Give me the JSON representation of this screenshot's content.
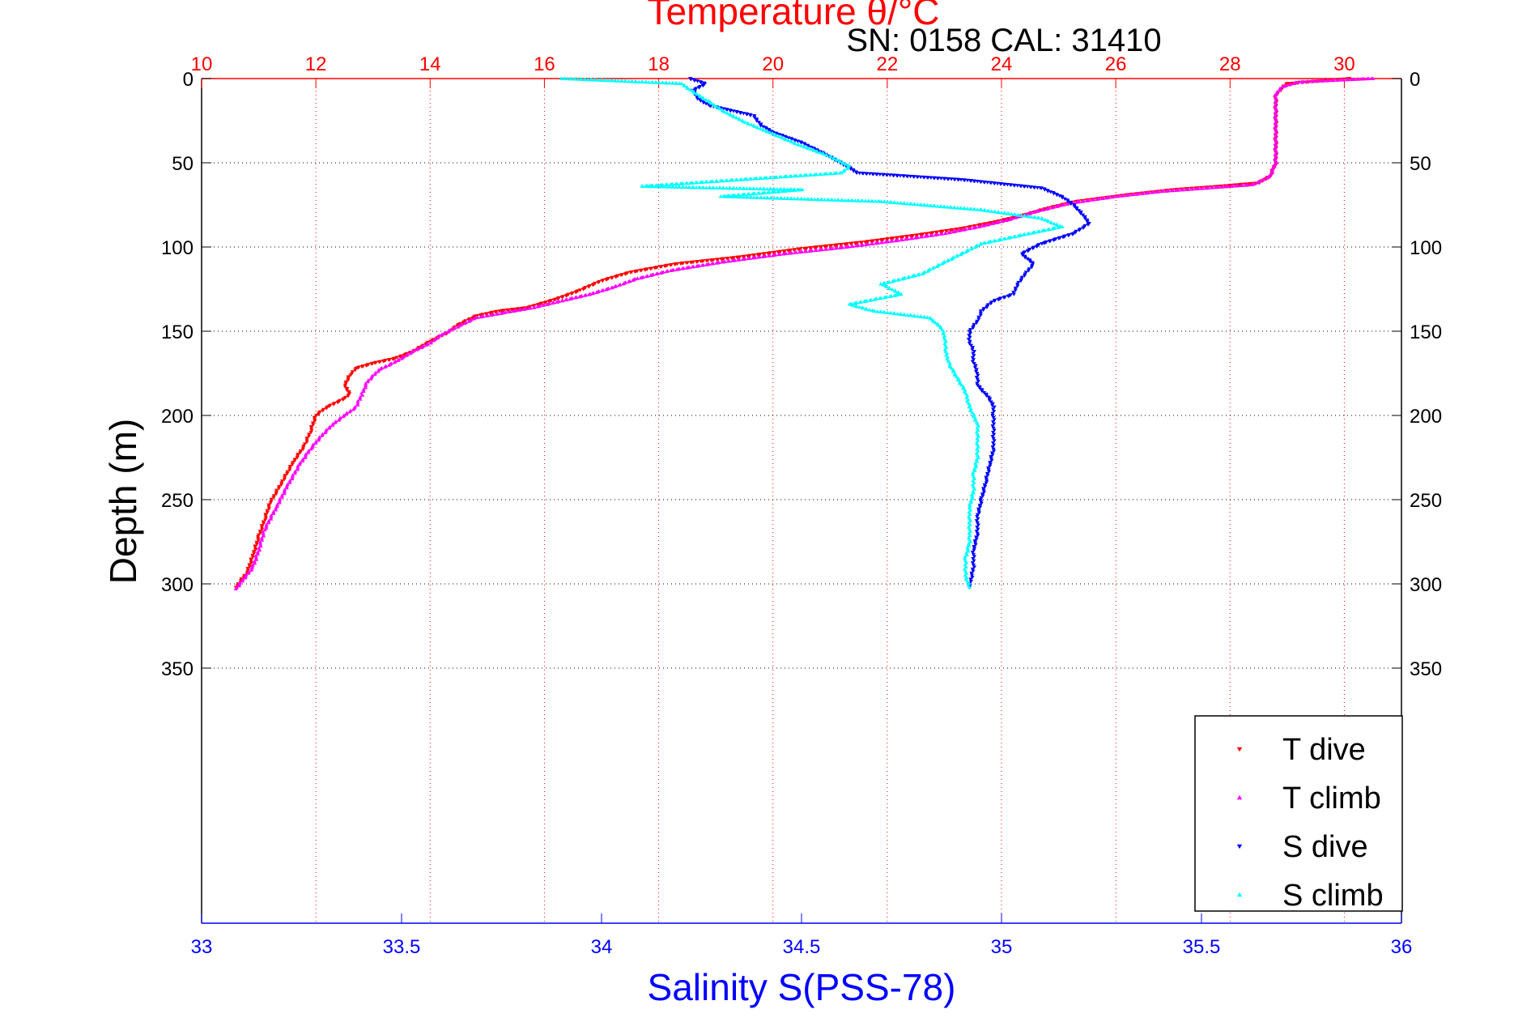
{
  "header": {
    "title": "Temperature θ/°C",
    "subtitle": "SN: 0158  CAL: 31410"
  },
  "chart_data": {
    "type": "scatter",
    "title": "Temperature θ/°C",
    "subtitle": "SN: 0158  CAL: 31410",
    "ylabel": "Depth (m)",
    "xlabel": "Salinity S(PSS-78)",
    "x2label": "Temperature θ/°C",
    "y_reversed": true,
    "ylim": [
      0,
      400
    ],
    "yticks": [
      0,
      50,
      100,
      150,
      200,
      250,
      300,
      350
    ],
    "xlim_salinity": [
      33,
      36
    ],
    "xticks_salinity": [
      "33",
      "33.5",
      "34",
      "34.5",
      "35",
      "35.5",
      "36"
    ],
    "xlim_temperature": [
      10,
      31
    ],
    "xticks_temperature": [
      "10",
      "12",
      "14",
      "16",
      "18",
      "20",
      "22",
      "24",
      "26",
      "28",
      "30"
    ],
    "grid": true,
    "legend_position": "bottom-right",
    "colors": {
      "temperature_axis": "#ff0000",
      "salinity_axis": "#0000ff",
      "depth_axis": "#000000"
    },
    "series": [
      {
        "name": "T dive",
        "axis": "temperature",
        "color": "#ff0000",
        "marker": "triangle-down",
        "points": [
          [
            30.1,
            0
          ],
          [
            29.0,
            3
          ],
          [
            28.9,
            6
          ],
          [
            28.8,
            10
          ],
          [
            28.8,
            20
          ],
          [
            28.8,
            30
          ],
          [
            28.8,
            40
          ],
          [
            28.8,
            50
          ],
          [
            28.7,
            58
          ],
          [
            28.5,
            62
          ],
          [
            27.8,
            64
          ],
          [
            27.0,
            66
          ],
          [
            26.2,
            69
          ],
          [
            25.3,
            73
          ],
          [
            24.8,
            77
          ],
          [
            24.4,
            81
          ],
          [
            23.9,
            85
          ],
          [
            23.3,
            89
          ],
          [
            22.5,
            93
          ],
          [
            21.6,
            97
          ],
          [
            20.5,
            101
          ],
          [
            19.4,
            106
          ],
          [
            18.3,
            110
          ],
          [
            17.5,
            115
          ],
          [
            17.0,
            120
          ],
          [
            16.6,
            126
          ],
          [
            16.2,
            131
          ],
          [
            15.9,
            134
          ],
          [
            15.7,
            136
          ],
          [
            15.2,
            138
          ],
          [
            14.8,
            141
          ],
          [
            14.5,
            146
          ],
          [
            14.3,
            151
          ],
          [
            14.0,
            156
          ],
          [
            13.7,
            162
          ],
          [
            13.4,
            166
          ],
          [
            13.0,
            169
          ],
          [
            12.7,
            172
          ],
          [
            12.6,
            176
          ],
          [
            12.5,
            182
          ],
          [
            12.6,
            187
          ],
          [
            12.5,
            190
          ],
          [
            12.2,
            195
          ],
          [
            12.0,
            200
          ],
          [
            11.9,
            210
          ],
          [
            11.8,
            218
          ],
          [
            11.6,
            228
          ],
          [
            11.4,
            240
          ],
          [
            11.2,
            252
          ],
          [
            11.1,
            262
          ],
          [
            11.0,
            272
          ],
          [
            10.9,
            283
          ],
          [
            10.8,
            293
          ],
          [
            10.6,
            302
          ]
        ]
      },
      {
        "name": "T climb",
        "axis": "temperature",
        "color": "#ff00ff",
        "marker": "triangle-up",
        "points": [
          [
            30.5,
            0
          ],
          [
            29.2,
            2
          ],
          [
            28.9,
            5
          ],
          [
            28.8,
            10
          ],
          [
            28.8,
            20
          ],
          [
            28.8,
            30
          ],
          [
            28.8,
            40
          ],
          [
            28.8,
            50
          ],
          [
            28.7,
            58
          ],
          [
            28.4,
            63
          ],
          [
            27.6,
            65
          ],
          [
            26.8,
            67
          ],
          [
            26.0,
            70
          ],
          [
            25.2,
            74
          ],
          [
            24.6,
            79
          ],
          [
            24.1,
            84
          ],
          [
            23.6,
            88
          ],
          [
            23.0,
            92
          ],
          [
            22.2,
            96
          ],
          [
            21.3,
            100
          ],
          [
            20.2,
            104
          ],
          [
            19.1,
            109
          ],
          [
            18.2,
            114
          ],
          [
            17.6,
            119
          ],
          [
            17.2,
            124
          ],
          [
            16.8,
            128
          ],
          [
            16.3,
            132
          ],
          [
            15.8,
            136
          ],
          [
            15.3,
            139
          ],
          [
            14.8,
            142
          ],
          [
            14.5,
            147
          ],
          [
            14.2,
            152
          ],
          [
            14.0,
            157
          ],
          [
            13.7,
            162
          ],
          [
            13.4,
            168
          ],
          [
            13.1,
            173
          ],
          [
            12.9,
            180
          ],
          [
            12.8,
            188
          ],
          [
            12.7,
            195
          ],
          [
            12.5,
            200
          ],
          [
            12.3,
            205
          ],
          [
            12.1,
            212
          ],
          [
            11.9,
            220
          ],
          [
            11.7,
            230
          ],
          [
            11.5,
            242
          ],
          [
            11.3,
            255
          ],
          [
            11.1,
            268
          ],
          [
            11.0,
            280
          ],
          [
            10.9,
            290
          ],
          [
            10.6,
            303
          ]
        ]
      },
      {
        "name": "S dive",
        "axis": "salinity",
        "color": "#0000ff",
        "marker": "triangle-down",
        "points": [
          [
            34.22,
            0
          ],
          [
            34.26,
            3
          ],
          [
            34.23,
            7
          ],
          [
            34.24,
            12
          ],
          [
            34.27,
            16
          ],
          [
            34.38,
            22
          ],
          [
            34.4,
            28
          ],
          [
            34.43,
            32
          ],
          [
            34.5,
            38
          ],
          [
            34.56,
            45
          ],
          [
            34.62,
            53
          ],
          [
            34.64,
            56
          ],
          [
            34.9,
            60
          ],
          [
            35.1,
            65
          ],
          [
            35.15,
            70
          ],
          [
            35.18,
            75
          ],
          [
            35.2,
            80
          ],
          [
            35.22,
            86
          ],
          [
            35.18,
            92
          ],
          [
            35.1,
            98
          ],
          [
            35.05,
            104
          ],
          [
            35.08,
            110
          ],
          [
            35.06,
            116
          ],
          [
            35.04,
            122
          ],
          [
            35.03,
            128
          ],
          [
            34.98,
            132
          ],
          [
            34.95,
            138
          ],
          [
            34.94,
            144
          ],
          [
            34.92,
            150
          ],
          [
            34.92,
            156
          ],
          [
            34.93,
            162
          ],
          [
            34.93,
            168
          ],
          [
            34.94,
            175
          ],
          [
            34.94,
            182
          ],
          [
            34.97,
            190
          ],
          [
            34.98,
            195
          ],
          [
            34.98,
            200
          ],
          [
            34.98,
            210
          ],
          [
            34.98,
            220
          ],
          [
            34.97,
            230
          ],
          [
            34.96,
            240
          ],
          [
            34.95,
            250
          ],
          [
            34.94,
            260
          ],
          [
            34.94,
            270
          ],
          [
            34.93,
            280
          ],
          [
            34.93,
            290
          ],
          [
            34.92,
            302
          ]
        ]
      },
      {
        "name": "S climb",
        "axis": "salinity",
        "color": "#00ffff",
        "marker": "triangle-up",
        "points": [
          [
            33.9,
            0
          ],
          [
            34.2,
            3
          ],
          [
            34.23,
            8
          ],
          [
            34.27,
            14
          ],
          [
            34.31,
            20
          ],
          [
            34.36,
            26
          ],
          [
            34.42,
            32
          ],
          [
            34.49,
            39
          ],
          [
            34.57,
            46
          ],
          [
            34.62,
            52
          ],
          [
            34.6,
            56
          ],
          [
            34.35,
            60
          ],
          [
            34.1,
            64
          ],
          [
            34.5,
            66
          ],
          [
            34.3,
            70
          ],
          [
            34.7,
            73
          ],
          [
            34.95,
            78
          ],
          [
            35.1,
            83
          ],
          [
            35.15,
            88
          ],
          [
            35.05,
            93
          ],
          [
            34.95,
            98
          ],
          [
            34.9,
            104
          ],
          [
            34.85,
            110
          ],
          [
            34.8,
            116
          ],
          [
            34.7,
            122
          ],
          [
            34.75,
            128
          ],
          [
            34.62,
            134
          ],
          [
            34.68,
            138
          ],
          [
            34.82,
            142
          ],
          [
            34.85,
            148
          ],
          [
            34.86,
            155
          ],
          [
            34.86,
            162
          ],
          [
            34.87,
            170
          ],
          [
            34.89,
            178
          ],
          [
            34.91,
            186
          ],
          [
            34.92,
            195
          ],
          [
            34.94,
            205
          ],
          [
            34.94,
            215
          ],
          [
            34.94,
            225
          ],
          [
            34.93,
            235
          ],
          [
            34.93,
            245
          ],
          [
            34.92,
            255
          ],
          [
            34.92,
            265
          ],
          [
            34.92,
            275
          ],
          [
            34.91,
            285
          ],
          [
            34.91,
            295
          ],
          [
            34.92,
            302
          ]
        ]
      }
    ]
  }
}
